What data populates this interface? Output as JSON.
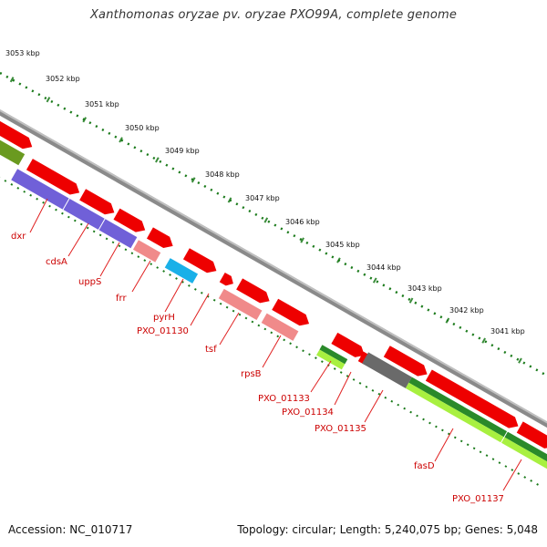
{
  "title": "Xanthomonas oryzae pv. oryzae PXO99A, complete genome",
  "footer": {
    "accession": "Accession: NC_010717",
    "topology": "Topology: circular; Length: 5,240,075 bp; Genes: 5,048"
  },
  "scale_labels": [
    "3053 kbp",
    "3052 kbp",
    "3051 kbp",
    "3050 kbp",
    "3049 kbp",
    "3048 kbp",
    "3047 kbp",
    "3046 kbp",
    "3045 kbp",
    "3044 kbp",
    "3043 kbp",
    "3042 kbp",
    "3041 kbp"
  ],
  "gene_labels": [
    "dxr",
    "cdsA",
    "uppS",
    "frr",
    "pyrH",
    "PXO_01130",
    "tsf",
    "rpsB",
    "PXO_01133",
    "PXO_01134",
    "PXO_01135",
    "fasD",
    "PXO_01137"
  ],
  "colors": {
    "backbone": "#8a8a8a",
    "scale": "#1a7a1a",
    "label_line": "#e02020",
    "label_text": "#cc0000",
    "cds_red": "#ee0000",
    "pink": "#f08a8a",
    "cyan": "#1ab0e8",
    "purple": "#7060d8",
    "olive": "#6a9a20",
    "dark_green": "#2a8a2a",
    "lime": "#a8f040",
    "gray_feature": "#6a6a6a"
  }
}
